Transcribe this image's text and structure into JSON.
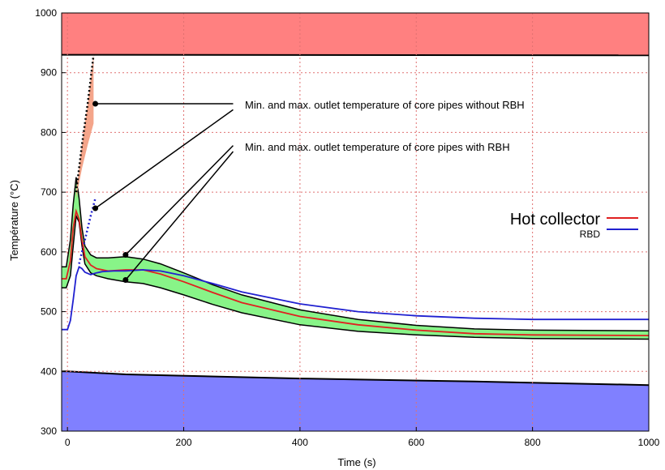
{
  "chart_data": {
    "type": "line",
    "title": "",
    "xlabel": "Time (s)",
    "ylabel": "Température (°C)",
    "xlim": [
      -10,
      1000
    ],
    "ylim": [
      300,
      1000
    ],
    "xticks": [
      0,
      200,
      400,
      600,
      800,
      1000
    ],
    "yticks": [
      300,
      400,
      500,
      600,
      700,
      800,
      900,
      1000
    ],
    "grid": true,
    "colors": {
      "upper_zone": "#ff8080",
      "lower_zone": "#8080ff",
      "band_without_rbh": "#f4a58a",
      "band_with_rbh": "#88f488",
      "hot_collector": "#e02020",
      "rbd": "#2020d0",
      "grid": "#e07070"
    },
    "zones": {
      "upper_boundary": {
        "x": [
          -10,
          1000
        ],
        "y": [
          930,
          929
        ]
      },
      "lower_boundary": {
        "x": [
          -10,
          0,
          100,
          400,
          700,
          1000
        ],
        "y": [
          400,
          400,
          395,
          388,
          383,
          377
        ]
      }
    },
    "band_without_rbh": {
      "x": [
        15,
        25,
        35,
        45
      ],
      "upper": [
        700,
        780,
        850,
        930
      ],
      "lower": [
        690,
        740,
        780,
        815
      ]
    },
    "band_with_rbh": {
      "x": [
        -10,
        -2,
        5,
        10,
        15,
        20,
        25,
        30,
        40,
        50,
        70,
        100,
        130,
        160,
        200,
        250,
        300,
        400,
        500,
        600,
        700,
        800,
        1000
      ],
      "upper": [
        575,
        575,
        620,
        680,
        725,
        690,
        640,
        610,
        595,
        590,
        590,
        592,
        588,
        580,
        565,
        545,
        528,
        503,
        487,
        477,
        471,
        469,
        468
      ],
      "lower": [
        540,
        540,
        560,
        610,
        660,
        650,
        610,
        580,
        565,
        560,
        555,
        550,
        547,
        540,
        528,
        512,
        498,
        478,
        467,
        461,
        457,
        455,
        454
      ]
    },
    "series": [
      {
        "name": "Hot collector",
        "x": [
          -10,
          -2,
          5,
          10,
          15,
          20,
          25,
          30,
          40,
          50,
          70,
          100,
          130,
          160,
          200,
          250,
          300,
          400,
          500,
          600,
          700,
          800,
          1000
        ],
        "y": [
          555,
          555,
          585,
          640,
          668,
          655,
          620,
          592,
          578,
          572,
          568,
          570,
          570,
          563,
          550,
          532,
          515,
          492,
          478,
          469,
          463,
          461,
          460
        ]
      },
      {
        "name": "RBD",
        "x": [
          -10,
          0,
          5,
          10,
          15,
          20,
          25,
          30,
          40,
          50,
          60,
          80,
          100,
          130,
          160,
          200,
          250,
          300,
          400,
          500,
          600,
          700,
          800,
          1000
        ],
        "y": [
          470,
          470,
          485,
          520,
          560,
          575,
          572,
          566,
          562,
          565,
          567,
          568,
          568,
          570,
          568,
          560,
          547,
          533,
          513,
          500,
          493,
          489,
          487,
          487
        ]
      }
    ],
    "dotted_lines": [
      {
        "color": "#000000",
        "x": [
          15,
          25,
          35,
          45
        ],
        "y": [
          700,
          780,
          850,
          930
        ]
      },
      {
        "color": "#2020d0",
        "x": [
          20,
          30,
          40,
          48
        ],
        "y": [
          580,
          620,
          660,
          690
        ]
      }
    ],
    "annotations": [
      {
        "text": "Min. and max. outlet temperature of core pipes without RBH",
        "lines": [
          {
            "from": [
              48,
              848
            ],
            "to": [
              285,
              848
            ]
          },
          {
            "from": [
              48,
              673
            ],
            "to": [
              285,
              838
            ]
          }
        ]
      },
      {
        "text": "Min. and max. outlet temperature of core pipes with RBH",
        "lines": [
          {
            "from": [
              100,
              595
            ],
            "to": [
              285,
              778
            ]
          },
          {
            "from": [
              100,
              553
            ],
            "to": [
              285,
              768
            ]
          }
        ]
      }
    ],
    "legend": {
      "placement": "right",
      "entries": [
        {
          "label": "Hot collector",
          "color": "#e02020"
        },
        {
          "label": "RBD",
          "color": "#2020d0"
        }
      ]
    }
  }
}
